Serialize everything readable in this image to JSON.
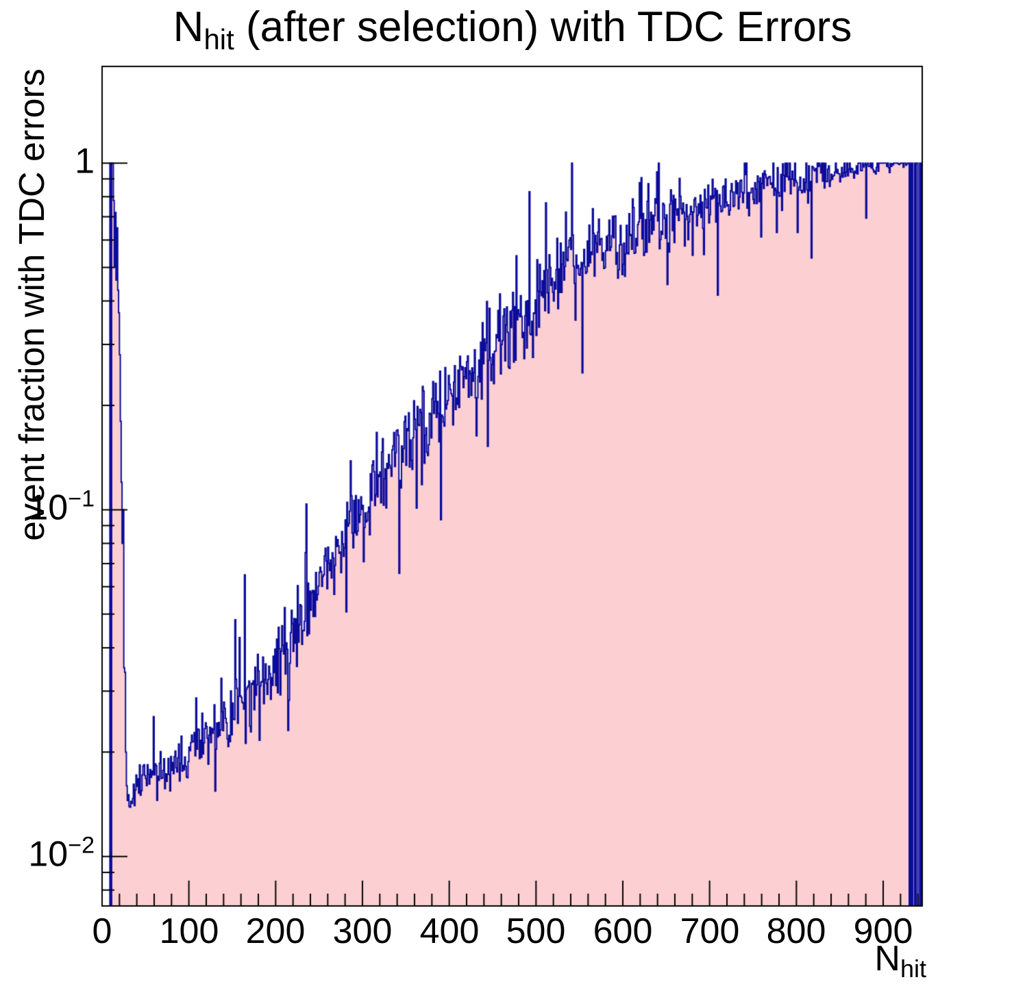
{
  "chart_data": {
    "type": "bar",
    "subtype": "step-histogram-log-y",
    "title": "N_hit (after selection) with TDC Errors",
    "title_parts": {
      "main": "N",
      "sub": "hit",
      "rest": " (after selection) with TDC Errors"
    },
    "ylabel": "event fraction with TDC errors",
    "xlabel_parts": {
      "main": "N",
      "sub": "hit"
    },
    "x_axis": {
      "min": 0,
      "max": 945,
      "major_tick_step": 100,
      "minor_tick_step": 20,
      "tick_values": [
        0,
        100,
        200,
        300,
        400,
        500,
        600,
        700,
        800,
        900
      ],
      "tick_labels": [
        "0",
        "100",
        "200",
        "300",
        "400",
        "500",
        "600",
        "700",
        "800",
        "900"
      ]
    },
    "y_axis": {
      "scale": "log",
      "display_min": 0.0072,
      "display_max": 1.9,
      "ticks": [
        {
          "mant": "1",
          "exp": "",
          "value": 1
        },
        {
          "mant": "10",
          "exp": "−1",
          "value": 0.1
        },
        {
          "mant": "10",
          "exp": "−2",
          "value": 0.01
        }
      ]
    },
    "colors": {
      "fill": "#fccfd2",
      "line": "#0c0c9b",
      "axis": "#000000",
      "text": "#000000",
      "background": "#ffffff"
    },
    "bin_width": 1,
    "spike_bins": {
      "start": 0,
      "values": [
        0,
        0,
        0,
        0,
        0,
        0,
        0,
        0,
        0,
        1,
        0,
        1,
        1,
        0.78,
        0.5,
        0.72,
        0.46,
        0.65,
        0.43,
        0.37,
        0.28,
        0.18,
        0.12,
        0.08,
        0.1,
        0.035,
        0.034,
        0.02,
        0.016,
        0.0145
      ]
    },
    "trend_anchors": [
      [
        30,
        0.0145
      ],
      [
        40,
        0.016
      ],
      [
        50,
        0.017
      ],
      [
        60,
        0.0175
      ],
      [
        80,
        0.018
      ],
      [
        100,
        0.0195
      ],
      [
        120,
        0.022
      ],
      [
        140,
        0.024
      ],
      [
        160,
        0.028
      ],
      [
        180,
        0.031
      ],
      [
        200,
        0.036
      ],
      [
        220,
        0.044
      ],
      [
        240,
        0.054
      ],
      [
        260,
        0.068
      ],
      [
        280,
        0.082
      ],
      [
        300,
        0.1
      ],
      [
        320,
        0.12
      ],
      [
        340,
        0.145
      ],
      [
        360,
        0.168
      ],
      [
        380,
        0.19
      ],
      [
        400,
        0.22
      ],
      [
        420,
        0.25
      ],
      [
        440,
        0.27
      ],
      [
        460,
        0.3
      ],
      [
        480,
        0.35
      ],
      [
        500,
        0.4
      ],
      [
        520,
        0.46
      ],
      [
        540,
        0.5
      ],
      [
        560,
        0.54
      ],
      [
        580,
        0.58
      ],
      [
        600,
        0.62
      ],
      [
        620,
        0.64
      ],
      [
        640,
        0.67
      ],
      [
        660,
        0.7
      ],
      [
        680,
        0.73
      ],
      [
        700,
        0.76
      ],
      [
        720,
        0.79
      ],
      [
        740,
        0.83
      ],
      [
        760,
        0.86
      ],
      [
        780,
        0.88
      ],
      [
        800,
        0.91
      ],
      [
        820,
        0.94
      ],
      [
        840,
        0.95
      ],
      [
        860,
        0.96
      ],
      [
        880,
        0.98
      ],
      [
        900,
        0.99
      ],
      [
        915,
        1.0
      ],
      [
        928,
        1.0
      ]
    ],
    "tail_bins": {
      "start": 928,
      "values": [
        1,
        1,
        0,
        1,
        0,
        1,
        0,
        0,
        1,
        0,
        1,
        1,
        0,
        0,
        1,
        0,
        1
      ]
    },
    "noise": {
      "seed": 1337,
      "sigma_anchors": [
        [
          30,
          0.025
        ],
        [
          80,
          0.035
        ],
        [
          150,
          0.045
        ],
        [
          250,
          0.055
        ],
        [
          350,
          0.06
        ],
        [
          450,
          0.065
        ],
        [
          550,
          0.055
        ],
        [
          650,
          0.05
        ],
        [
          720,
          0.04
        ],
        [
          780,
          0.035
        ],
        [
          840,
          0.025
        ],
        [
          880,
          0.015
        ],
        [
          928,
          0.008
        ]
      ],
      "outlier_prob": 0.055,
      "outlier_min_decades": 0.1,
      "outlier_max_decades": 0.32
    },
    "value_cap": 1.0
  }
}
